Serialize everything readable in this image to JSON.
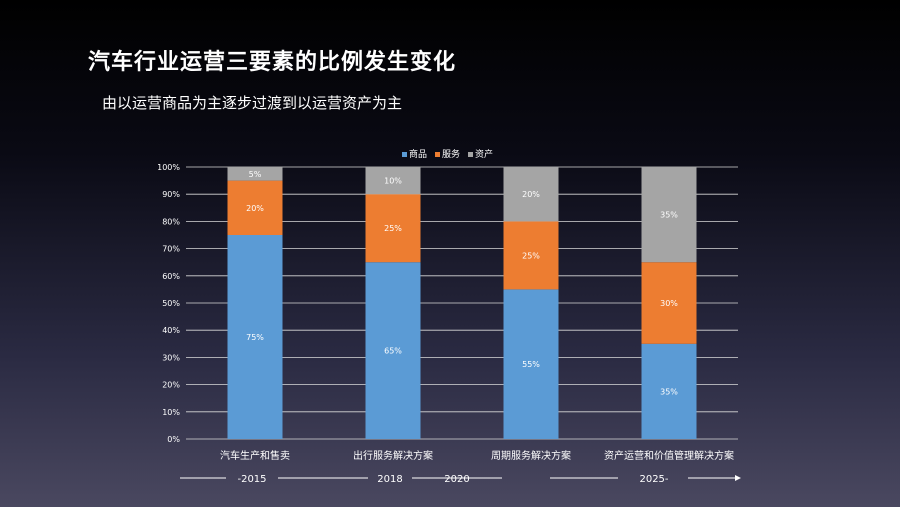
{
  "slide": {
    "title": "汽车行业运营三要素的比例发生变化",
    "subtitle": "由以运营商品为主逐步过渡到以运营资产为主"
  },
  "chart_data": {
    "type": "bar",
    "stacked": true,
    "categories": [
      "汽车生产和售卖",
      "出行服务解决方案",
      "周期服务解决方案",
      "资产运营和价值管理解决方案"
    ],
    "series": [
      {
        "name": "商品",
        "values": [
          75,
          65,
          55,
          35
        ],
        "color": "#5b9bd5"
      },
      {
        "name": "服务",
        "values": [
          20,
          25,
          25,
          30
        ],
        "color": "#ed7d31"
      },
      {
        "name": "资产",
        "values": [
          5,
          10,
          20,
          35
        ],
        "color": "#a5a5a5"
      }
    ],
    "ylim": [
      0,
      100
    ],
    "yticks": [
      "0%",
      "10%",
      "20%",
      "30%",
      "40%",
      "50%",
      "60%",
      "70%",
      "80%",
      "90%",
      "100%"
    ],
    "value_suffix": "%",
    "grid": true,
    "legend": "top-center"
  },
  "timeline": {
    "labels": [
      "-2015",
      "2018",
      "2020",
      "2025-"
    ]
  }
}
